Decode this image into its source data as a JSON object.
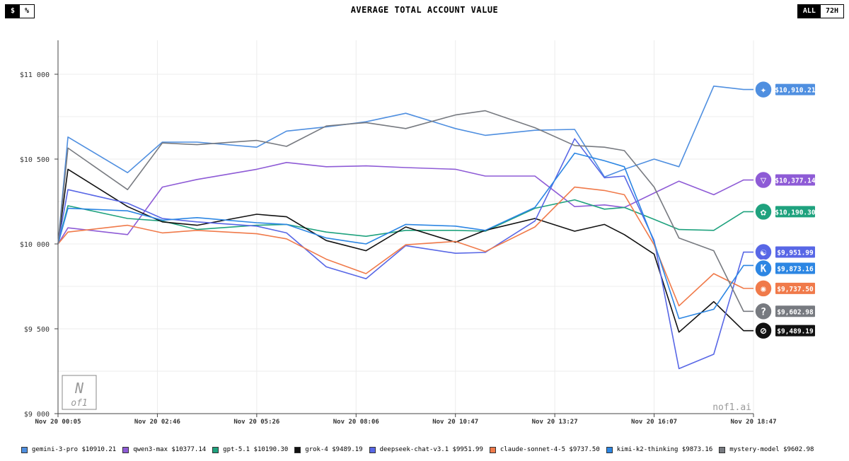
{
  "toggles": {
    "unit": [
      {
        "label": "$",
        "active": true
      },
      {
        "label": "%",
        "active": false
      }
    ],
    "range": [
      {
        "label": "ALL",
        "active": true
      },
      {
        "label": "72H",
        "active": false
      }
    ]
  },
  "watermark": "nof1.ai",
  "logo_text": "N of1",
  "chart_data": {
    "type": "line",
    "title": "AVERAGE TOTAL ACCOUNT VALUE",
    "xlabel": "",
    "ylabel": "",
    "ylim": [
      9000,
      11200
    ],
    "y_ticks": [
      9000,
      9500,
      10000,
      10500,
      11000
    ],
    "y_tick_labels": [
      "$9 000",
      "$9 500",
      "$10 000",
      "$10 500",
      "$11 000"
    ],
    "x_ticks": [
      0,
      1,
      2,
      3,
      4,
      5,
      6,
      7
    ],
    "x_tick_labels": [
      "Nov 20 00:05",
      "Nov 20 02:46",
      "Nov 20 05:26",
      "Nov 20 08:06",
      "Nov 20 10:47",
      "Nov 20 13:27",
      "Nov 20 16:07",
      "Nov 20 18:47"
    ],
    "x": [
      0,
      0.1,
      0.7,
      1.05,
      1.4,
      2.0,
      2.3,
      2.7,
      3.1,
      3.5,
      4.0,
      4.3,
      4.8,
      5.2,
      5.5,
      5.7,
      6.0,
      6.25,
      6.6,
      6.9,
      7.0
    ],
    "grid": true,
    "legend_position": "bottom",
    "series": [
      {
        "name": "gemini-3-pro",
        "legend": "gemini-3-pro $10910.21",
        "color": "#4f8fe0",
        "end_label": "$10,910.21",
        "icon": "sparkle-icon",
        "glyph": "✦",
        "values": [
          10000,
          10630,
          10420,
          10600,
          10600,
          10570,
          10665,
          10690,
          10720,
          10770,
          10680,
          10640,
          10670,
          10675,
          10395,
          10440,
          10500,
          10455,
          10930,
          10910,
          10910
        ]
      },
      {
        "name": "qwen3-max",
        "legend": "qwen3-max $10377.14",
        "color": "#8e5bd6",
        "end_label": "$10,377.14",
        "icon": "qwen-icon",
        "glyph": "▽",
        "values": [
          10000,
          10095,
          10055,
          10335,
          10380,
          10440,
          10480,
          10455,
          10460,
          10450,
          10440,
          10400,
          10400,
          10220,
          10230,
          10215,
          10300,
          10370,
          10290,
          10377,
          10377
        ]
      },
      {
        "name": "gpt-5.1",
        "legend": "gpt-5.1 $10190.30",
        "color": "#1fa27e",
        "end_label": "$10,190.30",
        "icon": "openai-icon",
        "glyph": "✿",
        "values": [
          10000,
          10225,
          10150,
          10135,
          10085,
          10110,
          10115,
          10070,
          10045,
          10080,
          10080,
          10075,
          10210,
          10260,
          10205,
          10215,
          10145,
          10085,
          10080,
          10190,
          10190
        ]
      },
      {
        "name": "grok-4",
        "legend": "grok-4 $9489.19",
        "color": "#111111",
        "end_label": "$9,489.19",
        "icon": "grok-icon",
        "glyph": "⊘",
        "values": [
          10000,
          10440,
          10220,
          10130,
          10110,
          10175,
          10160,
          10020,
          9960,
          10100,
          10010,
          10080,
          10150,
          10075,
          10115,
          10055,
          9940,
          9480,
          9660,
          9489,
          9489
        ]
      },
      {
        "name": "deepseek-chat-v3.1",
        "legend": "deepseek-chat-v3.1 $9951.99",
        "color": "#5867e6",
        "end_label": "$9,951.99",
        "icon": "deepseek-icon",
        "glyph": "☯",
        "values": [
          10000,
          10320,
          10240,
          10150,
          10130,
          10105,
          10065,
          9865,
          9795,
          9990,
          9945,
          9950,
          10135,
          10620,
          10390,
          10400,
          10020,
          9265,
          9350,
          9952,
          9952
        ]
      },
      {
        "name": "claude-sonnet-4-5",
        "legend": "claude-sonnet-4-5 $9737.50",
        "color": "#f07a4a",
        "end_label": "$9,737.50",
        "icon": "claude-icon",
        "glyph": "✺",
        "values": [
          10000,
          10070,
          10110,
          10065,
          10080,
          10060,
          10030,
          9910,
          9825,
          9995,
          10015,
          9955,
          10100,
          10335,
          10315,
          10290,
          9995,
          9635,
          9825,
          9738,
          9738
        ]
      },
      {
        "name": "kimi-k2-thinking",
        "legend": "kimi-k2-thinking $9873.16",
        "color": "#2c86e3",
        "end_label": "$9,873.16",
        "icon": "kimi-icon",
        "glyph": "K",
        "values": [
          10000,
          10210,
          10195,
          10140,
          10155,
          10125,
          10115,
          10035,
          10000,
          10115,
          10105,
          10080,
          10215,
          10535,
          10490,
          10455,
          10010,
          9560,
          9615,
          9873,
          9873
        ]
      },
      {
        "name": "mystery-model",
        "legend": "mystery-model $9602.98",
        "color": "#777a80",
        "end_label": "$9,602.98",
        "icon": "question-icon",
        "glyph": "?",
        "values": [
          10000,
          10565,
          10320,
          10595,
          10585,
          10610,
          10575,
          10695,
          10715,
          10680,
          10760,
          10785,
          10685,
          10580,
          10570,
          10550,
          10335,
          10035,
          9960,
          9603,
          9603
        ]
      }
    ]
  }
}
